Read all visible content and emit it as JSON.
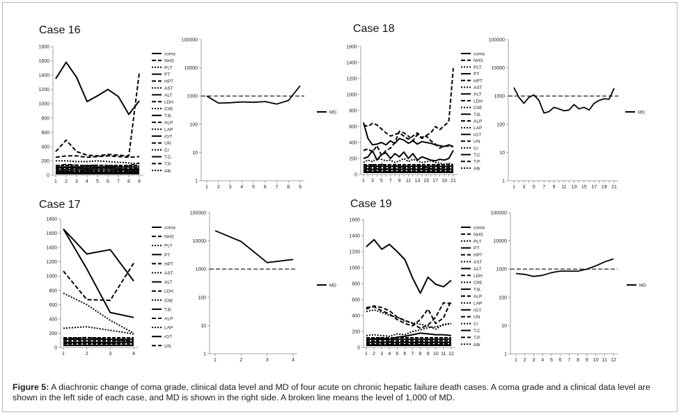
{
  "figure": {
    "caption_label": "Figure 5:",
    "caption_text": " A diachronic change of coma grade, clinical data level and MD of four acute on chronic hepatic failure death cases. A coma grade and a clinical data level are shown in the left side of each case, and MD is shown in the right side. A broken line means the level of 1,000 of MD."
  },
  "chart_data": [
    {
      "type": "line",
      "title": "Case 16",
      "x": [
        1,
        2,
        3,
        4,
        5,
        6,
        7,
        8,
        9
      ],
      "xticks": [
        "1",
        "2",
        "3",
        "4",
        "5",
        "6",
        "7",
        "8",
        "9"
      ],
      "ylim": [
        0,
        1800
      ],
      "yticks": [
        0,
        200,
        400,
        600,
        800,
        1000,
        1200,
        1400,
        1600,
        1800
      ],
      "legend": [
        "coma",
        "NHS",
        "PLT",
        "PT",
        "HPT",
        "AST",
        "ALT",
        "LDH",
        "ChE",
        "T.B.",
        "ALP",
        "LAP",
        "rGT",
        "UN",
        "Cr",
        "T.C.",
        "T.P.",
        "Alb"
      ],
      "series": [
        {
          "values": [
            1350,
            1580,
            1370,
            1030,
            1110,
            1200,
            1100,
            850,
            1040
          ],
          "style": "solid"
        },
        {
          "values": [
            330,
            490,
            330,
            280,
            270,
            290,
            280,
            270,
            1430
          ],
          "style": "dash"
        },
        {
          "values": [
            250,
            270,
            270,
            250,
            260,
            270,
            260,
            250,
            260
          ],
          "style": "dash"
        },
        {
          "values": [
            200,
            200,
            190,
            190,
            200,
            190,
            180,
            170,
            160
          ],
          "style": "dot"
        },
        {
          "values": [
            130,
            150,
            140,
            130,
            140,
            130,
            120,
            130,
            170
          ],
          "style": "dash"
        },
        {
          "values": [
            100,
            110,
            100,
            90,
            100,
            100,
            90,
            80,
            90
          ],
          "style": "solid"
        },
        {
          "values": [
            70,
            80,
            70,
            60,
            70,
            70,
            60,
            60,
            60
          ],
          "style": "dash"
        },
        {
          "values": [
            50,
            50,
            40,
            40,
            40,
            40,
            40,
            40,
            40
          ],
          "style": "solid"
        },
        {
          "values": [
            20,
            20,
            20,
            20,
            20,
            20,
            20,
            20,
            20
          ],
          "style": "solid"
        }
      ]
    },
    {
      "type": "line",
      "title": "",
      "x": [
        1,
        2,
        3,
        4,
        5,
        6,
        7,
        8,
        9
      ],
      "xticks": [
        "1",
        "2",
        "3",
        "4",
        "5",
        "6",
        "7",
        "8",
        "9"
      ],
      "yscale": "log",
      "ylim": [
        1,
        100000
      ],
      "yticks": [
        "1",
        "10",
        "100",
        "1000",
        "10000",
        "100000"
      ],
      "reference": 1000,
      "legend": [
        "MD"
      ],
      "series": [
        {
          "values": [
            1000,
            560,
            580,
            620,
            600,
            640,
            520,
            700,
            2300
          ],
          "style": "solid"
        }
      ]
    },
    {
      "type": "line",
      "title": "Case 17",
      "x": [
        1,
        2,
        3,
        4
      ],
      "xticks": [
        "1",
        "2",
        "3",
        "4"
      ],
      "ylim": [
        0,
        1800
      ],
      "yticks": [
        0,
        200,
        400,
        600,
        800,
        1000,
        1200,
        1400,
        1600,
        1800
      ],
      "legend": [
        "coma",
        "NHS",
        "PLT",
        "PT",
        "HPT",
        "AST",
        "ALT",
        "LDH",
        "ChE",
        "T.B.",
        "ALP",
        "LAP",
        "rGT",
        "UN"
      ],
      "series": [
        {
          "values": [
            1660,
            1310,
            1370,
            930
          ],
          "style": "solid"
        },
        {
          "values": [
            1660,
            1100,
            490,
            420
          ],
          "style": "solid"
        },
        {
          "values": [
            1070,
            670,
            660,
            1180
          ],
          "style": "dash"
        },
        {
          "values": [
            760,
            600,
            380,
            200
          ],
          "style": "dot"
        },
        {
          "values": [
            270,
            290,
            240,
            190
          ],
          "style": "dot"
        },
        {
          "values": [
            120,
            140,
            110,
            90
          ],
          "style": "dash"
        },
        {
          "values": [
            60,
            70,
            60,
            80
          ],
          "style": "solid"
        },
        {
          "values": [
            30,
            30,
            30,
            30
          ],
          "style": "solid"
        }
      ]
    },
    {
      "type": "line",
      "title": "",
      "x": [
        1,
        2,
        3,
        4
      ],
      "xticks": [
        "1",
        "2",
        "3",
        "4"
      ],
      "yscale": "log",
      "ylim": [
        1,
        100000
      ],
      "yticks": [
        "1",
        "10",
        "100",
        "1000",
        "10000",
        "100000"
      ],
      "reference": 1000,
      "legend": [
        "MD"
      ],
      "series": [
        {
          "values": [
            23000,
            9500,
            1700,
            2200
          ],
          "style": "solid"
        }
      ]
    },
    {
      "type": "line",
      "title": "Case 18",
      "x": [
        1,
        2,
        3,
        4,
        5,
        6,
        7,
        8,
        9,
        10,
        11,
        12,
        13,
        14,
        15,
        16,
        17,
        18,
        19,
        20,
        21
      ],
      "xticks": [
        "1",
        "",
        "3",
        "",
        "5",
        "",
        "7",
        "",
        "9",
        "",
        "11",
        "",
        "13",
        "",
        "15",
        "",
        "17",
        "",
        "19",
        "",
        "21"
      ],
      "ylim": [
        0,
        1600
      ],
      "yticks": [
        0,
        200,
        400,
        600,
        800,
        1000,
        1200,
        1400,
        1600
      ],
      "legend": [
        "coma",
        "NHS",
        "PLT",
        "PT",
        "HPT",
        "AST",
        "ALT",
        "LDH",
        "ChE",
        "T.B.",
        "ALP",
        "LAP",
        "rGT",
        "UN",
        "Cr",
        "T.C",
        "T.P.",
        "Alb"
      ],
      "series": [
        {
          "values": [
            650,
            450,
            370,
            380,
            400,
            370,
            420,
            390,
            450,
            430,
            390,
            420,
            380,
            410,
            400,
            390,
            370,
            360,
            350,
            370,
            350
          ],
          "style": "solid"
        },
        {
          "values": [
            620,
            600,
            640,
            620,
            570,
            520,
            480,
            500,
            520,
            480,
            440,
            480,
            520,
            460,
            490,
            520,
            600,
            560,
            610,
            660,
            1330
          ],
          "style": "dash"
        },
        {
          "values": [
            300,
            320,
            280,
            360,
            240,
            300,
            330,
            400,
            540,
            520,
            480,
            420,
            500,
            450,
            480,
            420,
            380,
            330,
            360,
            350,
            350
          ],
          "style": "dash"
        },
        {
          "values": [
            200,
            220,
            300,
            180,
            250,
            270,
            200,
            260,
            220,
            280,
            200,
            260,
            180,
            220,
            200,
            180,
            170,
            190,
            180,
            200,
            300
          ],
          "style": "solid"
        },
        {
          "values": [
            150,
            180,
            160,
            200,
            190,
            170,
            180,
            150,
            170,
            200,
            160,
            190,
            170,
            150,
            160,
            170,
            150,
            140,
            130,
            140,
            120
          ],
          "style": "dot"
        },
        {
          "values": [
            100,
            110,
            120,
            100,
            130,
            110,
            90,
            120,
            100,
            90,
            110,
            100,
            120,
            110,
            90,
            100,
            110,
            100,
            90,
            100,
            110
          ],
          "style": "dash"
        },
        {
          "values": [
            60,
            70,
            60,
            70,
            60,
            70,
            60,
            70,
            60,
            70,
            60,
            70,
            60,
            70,
            60,
            70,
            60,
            70,
            60,
            70,
            60
          ],
          "style": "solid"
        },
        {
          "values": [
            30,
            35,
            30,
            35,
            30,
            35,
            30,
            35,
            30,
            35,
            30,
            35,
            30,
            35,
            30,
            35,
            30,
            35,
            30,
            35,
            30
          ],
          "style": "solid"
        }
      ]
    },
    {
      "type": "line",
      "title": "",
      "x": [
        1,
        2,
        3,
        4,
        5,
        6,
        7,
        8,
        9,
        10,
        11,
        12,
        13,
        14,
        15,
        16,
        17,
        18,
        19,
        20,
        21
      ],
      "xticks": [
        "1",
        "",
        "3",
        "",
        "5",
        "",
        "7",
        "",
        "9",
        "",
        "11",
        "",
        "13",
        "",
        "15",
        "",
        "17",
        "",
        "19",
        "",
        "21"
      ],
      "yscale": "log",
      "ylim": [
        1,
        100000
      ],
      "yticks": [
        "1",
        "10",
        "100",
        "1000",
        "10000",
        "100000"
      ],
      "reference": 1000,
      "legend": [
        "MD"
      ],
      "series": [
        {
          "values": [
            2000,
            900,
            550,
            900,
            1100,
            700,
            250,
            280,
            400,
            350,
            300,
            320,
            500,
            350,
            400,
            320,
            550,
            700,
            800,
            780,
            1900
          ],
          "style": "solid"
        }
      ]
    },
    {
      "type": "line",
      "title": "Case 19",
      "x": [
        1,
        2,
        3,
        4,
        5,
        6,
        7,
        8,
        9,
        10,
        11,
        12
      ],
      "xticks": [
        "1",
        "2",
        "3",
        "4",
        "5",
        "6",
        "7",
        "8",
        "9",
        "10",
        "11",
        "12"
      ],
      "ylim": [
        0,
        1600
      ],
      "yticks": [
        0,
        200,
        400,
        600,
        800,
        1000,
        1200,
        1400,
        1600
      ],
      "legend": [
        "coma",
        "NHS",
        "PLT",
        "PT",
        "HPT",
        "AST",
        "ALT",
        "LDH",
        "ChE",
        "T.B.",
        "ALP",
        "LAP",
        "rGT",
        "UN",
        "Cr",
        "T.C",
        "T.P.",
        "Alb"
      ],
      "series": [
        {
          "values": [
            1260,
            1350,
            1230,
            1290,
            1200,
            1100,
            870,
            680,
            880,
            790,
            760,
            840
          ],
          "style": "solid"
        },
        {
          "values": [
            480,
            520,
            500,
            460,
            380,
            340,
            300,
            240,
            280,
            380,
            560,
            550
          ],
          "style": "dash"
        },
        {
          "values": [
            500,
            510,
            460,
            420,
            350,
            300,
            270,
            350,
            480,
            300,
            370,
            590
          ],
          "style": "dash"
        },
        {
          "values": [
            450,
            470,
            440,
            400,
            380,
            330,
            310,
            290,
            270,
            230,
            290,
            300
          ],
          "style": "dot"
        },
        {
          "values": [
            150,
            160,
            150,
            140,
            170,
            160,
            200,
            220,
            250,
            260,
            280,
            300
          ],
          "style": "dot"
        },
        {
          "values": [
            100,
            110,
            120,
            100,
            130,
            140,
            160,
            180,
            170,
            160,
            160,
            150
          ],
          "style": "solid"
        },
        {
          "values": [
            60,
            70,
            60,
            70,
            60,
            70,
            60,
            70,
            60,
            70,
            60,
            70
          ],
          "style": "solid"
        },
        {
          "values": [
            30,
            35,
            30,
            35,
            30,
            35,
            30,
            35,
            30,
            35,
            30,
            35
          ],
          "style": "solid"
        }
      ]
    },
    {
      "type": "line",
      "title": "",
      "x": [
        1,
        2,
        3,
        4,
        5,
        6,
        7,
        8,
        9,
        10,
        11,
        12
      ],
      "xticks": [
        "1",
        "2",
        "3",
        "4",
        "5",
        "6",
        "7",
        "8",
        "9",
        "10",
        "11",
        "12"
      ],
      "yscale": "log",
      "ylim": [
        1,
        100000
      ],
      "yticks": [
        "1",
        "10",
        "100",
        "1000",
        "10000",
        "100000"
      ],
      "reference": 1000,
      "legend": [
        "MD"
      ],
      "series": [
        {
          "values": [
            700,
            650,
            550,
            600,
            750,
            850,
            850,
            850,
            1000,
            1300,
            1800,
            2300
          ],
          "style": "solid"
        }
      ]
    }
  ]
}
